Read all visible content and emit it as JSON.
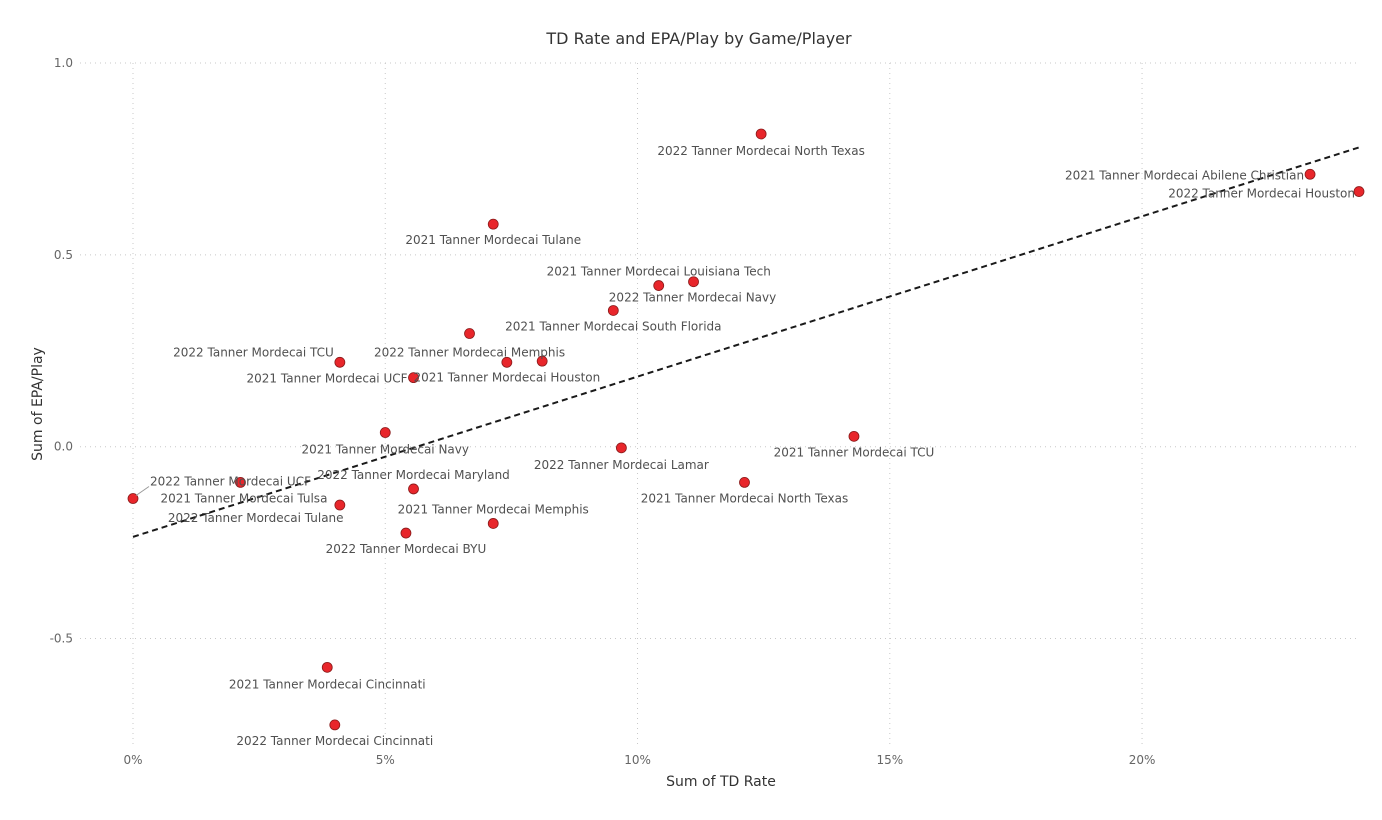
{
  "chart_data": {
    "type": "scatter",
    "title": "TD Rate and EPA/Play by Game/Player",
    "xlabel": "Sum of TD Rate",
    "ylabel": "Sum of EPA/Play",
    "xlim": [
      0,
      0.243
    ],
    "ylim": [
      -0.78,
      1.0
    ],
    "x_ticks": [
      {
        "v": 0,
        "label": "0%"
      },
      {
        "v": 0.05,
        "label": "5%"
      },
      {
        "v": 0.1,
        "label": "10%"
      },
      {
        "v": 0.15,
        "label": "15%"
      },
      {
        "v": 0.2,
        "label": "20%"
      }
    ],
    "y_ticks": [
      {
        "v": 1.0,
        "label": "1.0"
      },
      {
        "v": 0.5,
        "label": "0.5"
      },
      {
        "v": 0.0,
        "label": "0.0"
      },
      {
        "v": -0.5,
        "label": "-0.5"
      }
    ],
    "grid": true,
    "point_color": "#e8262b",
    "trend_line": {
      "x": [
        0,
        0.243
      ],
      "y": [
        -0.235,
        0.78
      ]
    },
    "points": [
      {
        "label": "2022 Tanner Mordecai North Texas",
        "x": 0.1245,
        "y": 0.815
      },
      {
        "label": "2021 Tanner Mordecai Abilene Christian",
        "x": 0.2333,
        "y": 0.71
      },
      {
        "label": "2022 Tanner Mordecai Houston",
        "x": 0.243,
        "y": 0.665
      },
      {
        "label": "2021 Tanner Mordecai Tulane",
        "x": 0.0714,
        "y": 0.58
      },
      {
        "label": "2021 Tanner Mordecai Louisiana Tech",
        "x": 0.1042,
        "y": 0.42
      },
      {
        "label": "2022 Tanner Mordecai Navy",
        "x": 0.1111,
        "y": 0.43
      },
      {
        "label": "2021 Tanner Mordecai South Florida",
        "x": 0.0952,
        "y": 0.355
      },
      {
        "label": "2022 Tanner Mordecai Memphis",
        "x": 0.0667,
        "y": 0.295
      },
      {
        "label": "2021 Tanner Mordecai Houston",
        "x": 0.0741,
        "y": 0.22
      },
      {
        "label": "",
        "x": 0.0811,
        "y": 0.223
      },
      {
        "label": "2022 Tanner Mordecai TCU",
        "x": 0.041,
        "y": 0.22
      },
      {
        "label": "2021 Tanner Mordecai UCF",
        "x": 0.0556,
        "y": 0.18
      },
      {
        "label": "2021 Tanner Mordecai Navy",
        "x": 0.05,
        "y": 0.037
      },
      {
        "label": "2022 Tanner Mordecai Lamar",
        "x": 0.0968,
        "y": -0.003
      },
      {
        "label": "2021 Tanner Mordecai TCU",
        "x": 0.1429,
        "y": 0.027
      },
      {
        "label": "2021 Tanner Mordecai North Texas",
        "x": 0.1212,
        "y": -0.093
      },
      {
        "label": "2022 Tanner Mordecai UCF",
        "x": 0.0,
        "y": -0.135
      },
      {
        "label": "2022 Tanner Mordecai Maryland",
        "x": 0.0556,
        "y": -0.11
      },
      {
        "label": "2021 Tanner Mordecai Tulsa",
        "x": 0.0213,
        "y": -0.093
      },
      {
        "label": "2022 Tanner Mordecai Tulane",
        "x": 0.041,
        "y": -0.152
      },
      {
        "label": "2021 Tanner Mordecai Memphis",
        "x": 0.0714,
        "y": -0.2
      },
      {
        "label": "2022 Tanner Mordecai BYU",
        "x": 0.0541,
        "y": -0.225
      },
      {
        "label": "2021 Tanner Mordecai Cincinnati",
        "x": 0.0385,
        "y": -0.575
      },
      {
        "label": "2022 Tanner Mordecai Cincinnati",
        "x": 0.04,
        "y": -0.725
      }
    ]
  }
}
